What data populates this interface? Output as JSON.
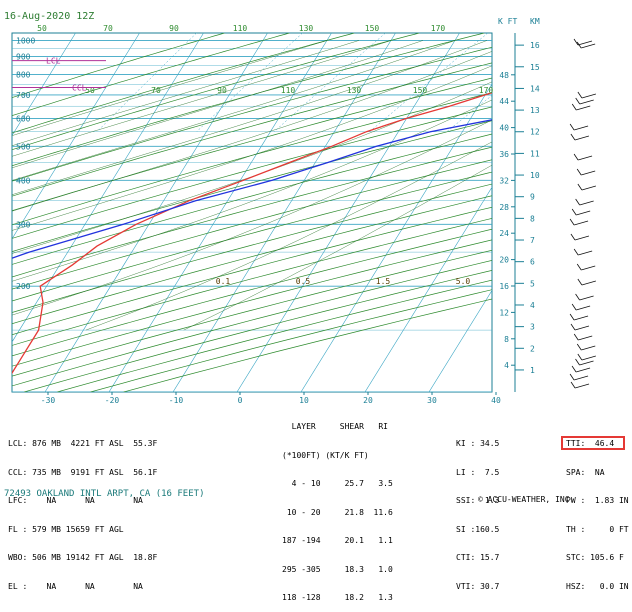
{
  "header": {
    "date_time": "16-Aug-2020 12Z",
    "height_units": [
      "K FT",
      "KM"
    ]
  },
  "station_line": "72493 OAKLAND INTL ARPT, CA (16 FEET)",
  "copyright": "© ACCU-WEATHER, INC.",
  "colors": {
    "frame": "#1b7f95",
    "isobar": "#3aa6c4",
    "dry_adiabat": "#2e8b2e",
    "moist_adiabat": "#1e6b1e",
    "temperature": "#e53935",
    "dewpoint": "#2233dd",
    "level_marker": "#b0339a",
    "highlight_box": "#e53935"
  },
  "parcel_table": [
    "LCL: 876 MB  4221 FT ASL  55.3F",
    "CCL: 735 MB  9191 FT ASL  56.1F",
    "LFC:    NA      NA        NA",
    "FL : 579 MB 15659 FT AGL",
    "WBO: 506 MB 19142 FT AGL  18.8F",
    "EL :    NA      NA        NA"
  ],
  "shear_table": {
    "header1": "  LAYER     SHEAR   RI",
    "header2": "(*100FT) (KT/K FT)",
    "rows": [
      "  4 - 10     25.7   3.5",
      " 10 - 20     21.8  11.6",
      "187 -194     20.1   1.1",
      "295 -305     18.3   1.0",
      "118 -128     18.2   1.3"
    ]
  },
  "indices_col1": [
    "KI : 34.5",
    "LI :  7.5",
    "SSI:  1.3",
    "SI :160.5",
    "CTI: 15.7",
    "VTI: 30.7"
  ],
  "indices_col2": [
    "TTI:  46.4",
    "SPA:  NA",
    "PW :  1.83 IN",
    "TH :     0 FT",
    "STC: 105.6 F",
    "HSZ:   0.0 IN"
  ],
  "chart_data": {
    "type": "line",
    "diagram": "skew-T log-p",
    "x_axis": {
      "label": "",
      "ticks": [
        -30,
        -20,
        -10,
        0,
        10,
        20,
        30,
        40
      ],
      "unit": "C"
    },
    "y_axis": {
      "label": "",
      "ticks": [
        200,
        300,
        400,
        500,
        600,
        700,
        800,
        900,
        1000
      ],
      "unit": "mb",
      "scale": "log"
    },
    "top_ticks": [
      50,
      70,
      90,
      110,
      130,
      150,
      170
    ],
    "dry_adiabat_labels": [
      50,
      70,
      90,
      110,
      130,
      150,
      170
    ],
    "mixing_ratio_labels": [
      "0.1",
      "0.5",
      "1.5",
      "5.0"
    ],
    "height_kft_labels": [
      4,
      8,
      12,
      16,
      20,
      24,
      28,
      32,
      36,
      40,
      44,
      48
    ],
    "height_km_labels": [
      1,
      2,
      3,
      4,
      5,
      6,
      7,
      8,
      9,
      10,
      11,
      12,
      13,
      14,
      15,
      16
    ],
    "level_markers": [
      {
        "label": "CCL",
        "p": 735
      },
      {
        "label": "LCL",
        "p": 876
      }
    ],
    "series": [
      {
        "key": "temperature",
        "values": [
          [
            1000,
            23
          ],
          [
            985,
            26
          ],
          [
            960,
            33.5
          ],
          [
            940,
            31
          ],
          [
            900,
            26
          ],
          [
            850,
            21.5
          ],
          [
            800,
            17.5
          ],
          [
            760,
            15
          ],
          [
            700,
            10
          ],
          [
            650,
            5.5
          ],
          [
            600,
            0
          ],
          [
            550,
            -5
          ],
          [
            500,
            -9
          ],
          [
            450,
            -14
          ],
          [
            400,
            -19.5
          ],
          [
            350,
            -26
          ],
          [
            300,
            -32
          ],
          [
            260,
            -36
          ],
          [
            230,
            -38
          ],
          [
            200,
            -41
          ],
          [
            180,
            -39
          ],
          [
            150,
            -37
          ],
          [
            120,
            -37
          ],
          [
            100,
            -37
          ]
        ]
      },
      {
        "key": "dewpoint",
        "values": [
          [
            1000,
            15
          ],
          [
            990,
            18.5
          ],
          [
            975,
            11
          ],
          [
            960,
            15.5
          ],
          [
            940,
            12
          ],
          [
            910,
            16
          ],
          [
            880,
            13
          ],
          [
            850,
            17.5
          ],
          [
            820,
            14
          ],
          [
            790,
            17
          ],
          [
            760,
            14.5
          ],
          [
            720,
            17.5
          ],
          [
            700,
            15
          ],
          [
            680,
            16.5
          ],
          [
            650,
            15
          ],
          [
            620,
            16.5
          ],
          [
            600,
            14.5
          ],
          [
            550,
            5
          ],
          [
            500,
            -2
          ],
          [
            450,
            -8
          ],
          [
            400,
            -15
          ],
          [
            350,
            -25
          ],
          [
            300,
            -34
          ],
          [
            250,
            -46
          ],
          [
            200,
            -58
          ],
          [
            170,
            -68
          ],
          [
            150,
            -77
          ]
        ]
      }
    ],
    "wind_profile_present": true
  }
}
